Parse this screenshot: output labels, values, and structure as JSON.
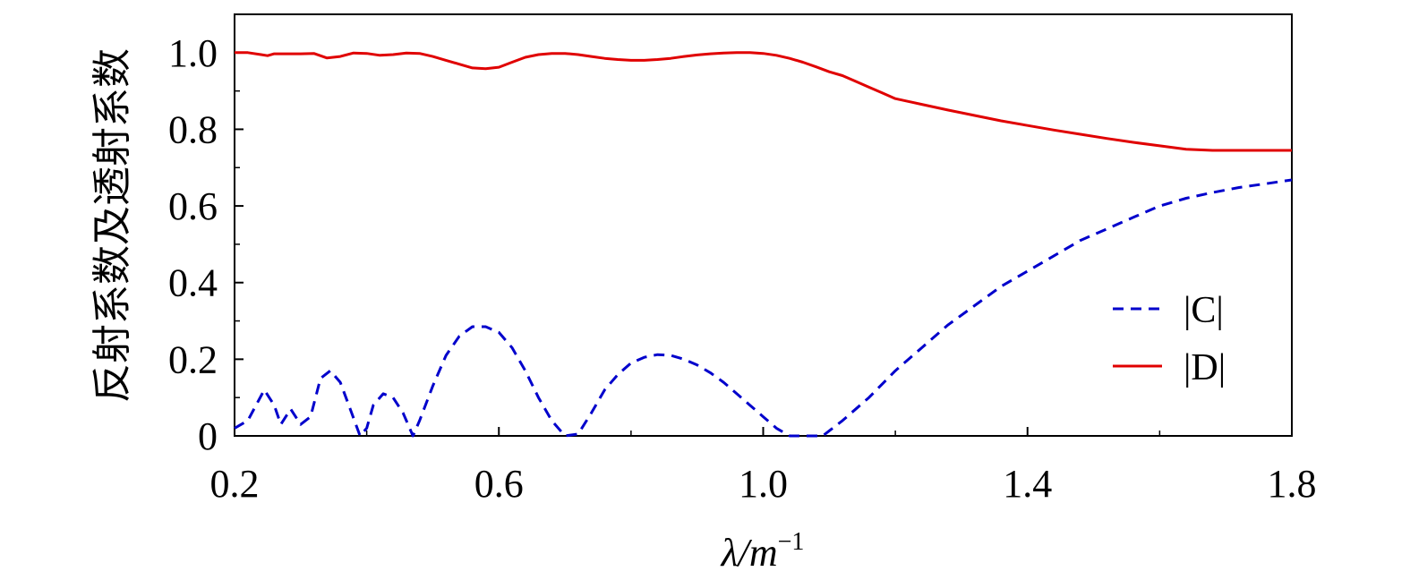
{
  "chart_data": {
    "type": "line",
    "title": "",
    "xlabel": "λ/m",
    "xlabel_superscript": "−1",
    "ylabel": "反射系数及透射系数",
    "xlim": [
      0.2,
      1.8
    ],
    "ylim": [
      0,
      1.1
    ],
    "xticks": [
      0.2,
      0.6,
      1.0,
      1.4,
      1.8
    ],
    "xtick_labels": [
      "0.2",
      "0.6",
      "1.0",
      "1.4",
      "1.8"
    ],
    "yticks": [
      0,
      0.2,
      0.4,
      0.6,
      0.8,
      1.0
    ],
    "ytick_labels": [
      "0",
      "0.2",
      "0.4",
      "0.6",
      "0.8",
      "1.0"
    ],
    "grid": false,
    "legend_position": "right",
    "series": [
      {
        "name": "|C|",
        "color": "#0000cc",
        "style": "dashed",
        "x": [
          0.2,
          0.22,
          0.245,
          0.26,
          0.27,
          0.285,
          0.3,
          0.315,
          0.33,
          0.345,
          0.36,
          0.375,
          0.39,
          0.4,
          0.41,
          0.425,
          0.44,
          0.455,
          0.47,
          0.48,
          0.5,
          0.52,
          0.54,
          0.56,
          0.58,
          0.6,
          0.62,
          0.64,
          0.66,
          0.68,
          0.7,
          0.72,
          0.74,
          0.76,
          0.78,
          0.8,
          0.82,
          0.84,
          0.86,
          0.88,
          0.9,
          0.92,
          0.94,
          0.96,
          0.98,
          1.0,
          1.02,
          1.04,
          1.06,
          1.08,
          1.09,
          1.12,
          1.16,
          1.2,
          1.24,
          1.28,
          1.32,
          1.36,
          1.4,
          1.44,
          1.48,
          1.52,
          1.56,
          1.6,
          1.64,
          1.68,
          1.72,
          1.76,
          1.8
        ],
        "y": [
          0.02,
          0.04,
          0.12,
          0.08,
          0.03,
          0.07,
          0.03,
          0.05,
          0.15,
          0.17,
          0.14,
          0.07,
          0.0,
          0.02,
          0.08,
          0.11,
          0.1,
          0.06,
          0.0,
          0.04,
          0.13,
          0.21,
          0.26,
          0.285,
          0.285,
          0.27,
          0.23,
          0.17,
          0.1,
          0.04,
          0.0,
          0.005,
          0.06,
          0.12,
          0.16,
          0.19,
          0.205,
          0.212,
          0.21,
          0.2,
          0.185,
          0.165,
          0.14,
          0.11,
          0.08,
          0.05,
          0.02,
          0.0,
          0.0,
          0.0,
          0.0,
          0.04,
          0.1,
          0.17,
          0.23,
          0.29,
          0.34,
          0.39,
          0.43,
          0.47,
          0.51,
          0.54,
          0.57,
          0.6,
          0.62,
          0.635,
          0.648,
          0.658,
          0.668
        ]
      },
      {
        "name": "|D|",
        "color": "#e00000",
        "style": "solid",
        "x": [
          0.2,
          0.22,
          0.24,
          0.25,
          0.26,
          0.28,
          0.3,
          0.32,
          0.34,
          0.36,
          0.38,
          0.4,
          0.42,
          0.44,
          0.46,
          0.48,
          0.5,
          0.52,
          0.54,
          0.56,
          0.58,
          0.6,
          0.62,
          0.64,
          0.66,
          0.68,
          0.7,
          0.72,
          0.74,
          0.76,
          0.78,
          0.8,
          0.82,
          0.84,
          0.86,
          0.88,
          0.9,
          0.92,
          0.94,
          0.96,
          0.98,
          1.0,
          1.02,
          1.04,
          1.06,
          1.08,
          1.1,
          1.12,
          1.14,
          1.16,
          1.18,
          1.2,
          1.24,
          1.28,
          1.32,
          1.36,
          1.4,
          1.44,
          1.48,
          1.52,
          1.56,
          1.6,
          1.64,
          1.68,
          1.72,
          1.76,
          1.8
        ],
        "y": [
          1.0,
          1.0,
          0.995,
          0.992,
          0.997,
          0.997,
          0.997,
          0.998,
          0.986,
          0.99,
          0.999,
          0.998,
          0.993,
          0.995,
          0.999,
          0.998,
          0.99,
          0.98,
          0.97,
          0.96,
          0.958,
          0.962,
          0.975,
          0.988,
          0.995,
          0.998,
          0.998,
          0.995,
          0.99,
          0.985,
          0.982,
          0.98,
          0.98,
          0.982,
          0.985,
          0.99,
          0.994,
          0.997,
          0.999,
          1.0,
          1.0,
          0.998,
          0.993,
          0.985,
          0.975,
          0.963,
          0.95,
          0.94,
          0.925,
          0.91,
          0.895,
          0.88,
          0.865,
          0.85,
          0.836,
          0.822,
          0.81,
          0.798,
          0.787,
          0.776,
          0.766,
          0.757,
          0.748,
          0.745,
          0.745,
          0.745,
          0.745
        ]
      }
    ]
  }
}
